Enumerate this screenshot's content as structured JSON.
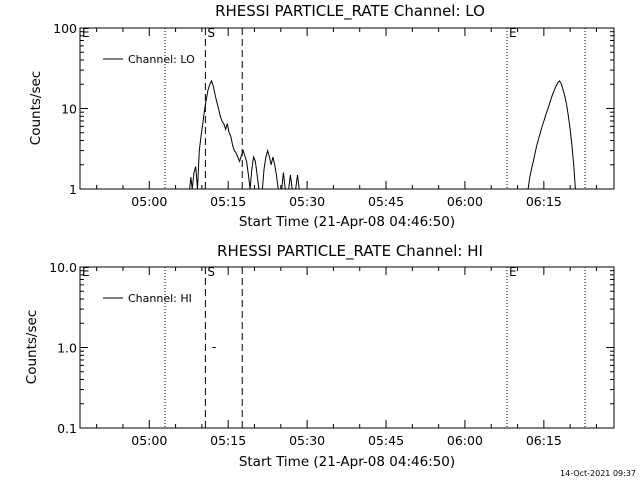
{
  "timestamp": "14-Oct-2021 09:37",
  "chart_data": [
    {
      "type": "line",
      "title": "RHESSI PARTICLE_RATE Channel: LO",
      "xlabel": "Start Time (21-Apr-08 04:46:50)",
      "ylabel": "Counts/sec",
      "yscale": "log",
      "ylim": [
        1,
        100
      ],
      "yticks": [
        "1",
        "10",
        "100"
      ],
      "xlim": [
        "04:46:50",
        "06:28:20"
      ],
      "xticks": [
        "05:00",
        "05:15",
        "05:30",
        "05:45",
        "06:00",
        "06:15"
      ],
      "legend": "top-left",
      "series": [
        {
          "name": "Channel: LO",
          "points": [
            [
              "05:07:40",
              1
            ],
            [
              "05:07:55",
              1.4
            ],
            [
              "05:08:10",
              1
            ],
            [
              "05:08:30",
              1.6
            ],
            [
              "05:08:50",
              1.9
            ],
            [
              "05:09:10",
              1
            ],
            [
              "05:09:30",
              3.0
            ],
            [
              "05:09:50",
              4.5
            ],
            [
              "05:10:10",
              6.5
            ],
            [
              "05:10:30",
              9.5
            ],
            [
              "05:10:50",
              13
            ],
            [
              "05:11:10",
              17
            ],
            [
              "05:11:30",
              20
            ],
            [
              "05:11:50",
              22
            ],
            [
              "05:12:10",
              19
            ],
            [
              "05:12:30",
              15
            ],
            [
              "05:12:50",
              12
            ],
            [
              "05:13:10",
              10
            ],
            [
              "05:13:30",
              8
            ],
            [
              "05:13:50",
              7
            ],
            [
              "05:14:10",
              6.5
            ],
            [
              "05:14:30",
              5.5
            ],
            [
              "05:14:50",
              6.5
            ],
            [
              "05:15:10",
              5
            ],
            [
              "05:15:30",
              4.5
            ],
            [
              "05:15:50",
              3.5
            ],
            [
              "05:16:10",
              3
            ],
            [
              "05:16:30",
              2.8
            ],
            [
              "05:16:50",
              2.5
            ],
            [
              "05:17:10",
              2.2
            ],
            [
              "05:17:30",
              2.6
            ],
            [
              "05:17:50",
              3
            ],
            [
              "05:18:10",
              2.6
            ],
            [
              "05:18:30",
              2.2
            ],
            [
              "05:18:50",
              1.5
            ],
            [
              "05:19:10",
              1
            ],
            [
              "05:19:30",
              1.8
            ],
            [
              "05:19:50",
              2.5
            ],
            [
              "05:20:10",
              2.2
            ],
            [
              "05:20:30",
              1.5
            ],
            [
              "05:20:50",
              1
            ],
            [
              "05:21:30",
              1
            ],
            [
              "05:21:50",
              1.8
            ],
            [
              "05:22:10",
              2.5
            ],
            [
              "05:22:30",
              3
            ],
            [
              "05:22:50",
              2.5
            ],
            [
              "05:23:10",
              2
            ],
            [
              "05:23:30",
              2.5
            ],
            [
              "05:23:50",
              2
            ],
            [
              "05:24:10",
              1.5
            ],
            [
              "05:24:30",
              1
            ],
            [
              "05:25:10",
              1
            ],
            [
              "05:25:30",
              1.6
            ],
            [
              "05:25:50",
              1
            ],
            [
              "05:26:30",
              1
            ],
            [
              "05:26:50",
              1.5
            ],
            [
              "05:27:10",
              1
            ],
            [
              "05:27:50",
              1
            ],
            [
              "05:28:10",
              1.5
            ],
            [
              "05:28:30",
              1
            ],
            [
              "06:12:00",
              1
            ],
            [
              "06:12:20",
              1.4
            ],
            [
              "06:12:40",
              1.8
            ],
            [
              "06:13:00",
              2.2
            ],
            [
              "06:13:20",
              2.8
            ],
            [
              "06:13:40",
              3.5
            ],
            [
              "06:14:00",
              4.2
            ],
            [
              "06:14:20",
              5
            ],
            [
              "06:14:40",
              6
            ],
            [
              "06:15:00",
              7
            ],
            [
              "06:15:20",
              8.2
            ],
            [
              "06:15:40",
              9.5
            ],
            [
              "06:16:00",
              11
            ],
            [
              "06:16:20",
              13
            ],
            [
              "06:16:40",
              15
            ],
            [
              "06:17:00",
              17
            ],
            [
              "06:17:20",
              19
            ],
            [
              "06:17:40",
              21
            ],
            [
              "06:18:00",
              22
            ],
            [
              "06:18:20",
              20
            ],
            [
              "06:18:40",
              17
            ],
            [
              "06:19:00",
              14
            ],
            [
              "06:19:20",
              11
            ],
            [
              "06:19:40",
              8
            ],
            [
              "06:20:00",
              5.5
            ],
            [
              "06:20:20",
              3.5
            ],
            [
              "06:20:40",
              2
            ],
            [
              "06:21:00",
              1
            ]
          ]
        }
      ],
      "markers": [
        {
          "time": "05:03:00",
          "style": "dotted",
          "label": ""
        },
        {
          "time": "05:10:40",
          "style": "dashed",
          "label": "S"
        },
        {
          "time": "05:17:40",
          "style": "dashed",
          "label": ""
        },
        {
          "time": "06:08:00",
          "style": "dotted",
          "label": "E"
        },
        {
          "time": "06:22:50",
          "style": "dotted",
          "label": ""
        }
      ],
      "corner_label": "E"
    },
    {
      "type": "line",
      "title": "RHESSI PARTICLE_RATE Channel: HI",
      "xlabel": "Start Time (21-Apr-08 04:46:50)",
      "ylabel": "Counts/sec",
      "yscale": "log",
      "ylim": [
        0.1,
        10
      ],
      "yticks": [
        "0.1",
        "1.0",
        "10.0"
      ],
      "xlim": [
        "04:46:50",
        "06:28:20"
      ],
      "xticks": [
        "05:00",
        "05:15",
        "05:30",
        "05:45",
        "06:00",
        "06:15"
      ],
      "legend": "top-left",
      "series": [
        {
          "name": "Channel: HI",
          "points": [
            [
              "05:12:00",
              1.0
            ],
            [
              "05:12:40",
              1.0
            ]
          ]
        }
      ],
      "markers": [
        {
          "time": "05:03:00",
          "style": "dotted",
          "label": ""
        },
        {
          "time": "05:10:40",
          "style": "dashed",
          "label": "S"
        },
        {
          "time": "05:17:40",
          "style": "dashed",
          "label": ""
        },
        {
          "time": "06:08:00",
          "style": "dotted",
          "label": "E"
        },
        {
          "time": "06:22:50",
          "style": "dotted",
          "label": ""
        }
      ],
      "corner_label": "E"
    }
  ]
}
